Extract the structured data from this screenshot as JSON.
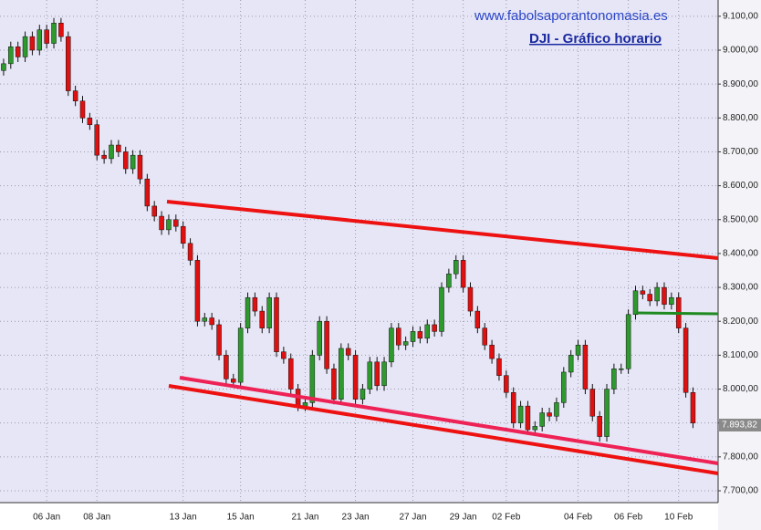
{
  "chart_data": {
    "type": "candlestick",
    "site": "www.fabolsaporantonomasia.es",
    "title": "DJI - Gráfico horario",
    "up_color": "#2e9a2e",
    "down_color": "#e01010",
    "grid": true,
    "ylim": [
      7665,
      9148
    ],
    "yticks": [
      {
        "value": 7700,
        "label": "7.700,00"
      },
      {
        "value": 7800,
        "label": "7.800,00"
      },
      {
        "value": 7900,
        "label": "7.900,00"
      },
      {
        "value": 8000,
        "label": "8.000,00"
      },
      {
        "value": 8100,
        "label": "8.100,00"
      },
      {
        "value": 8200,
        "label": "8.200,00"
      },
      {
        "value": 8300,
        "label": "8.300,00"
      },
      {
        "value": 8400,
        "label": "8.400,00"
      },
      {
        "value": 8500,
        "label": "8.500,00"
      },
      {
        "value": 8600,
        "label": "8.600,00"
      },
      {
        "value": 8700,
        "label": "8.700,00"
      },
      {
        "value": 8800,
        "label": "8.800,00"
      },
      {
        "value": 8900,
        "label": "8.900,00"
      },
      {
        "value": 9000,
        "label": "9.000,00"
      },
      {
        "value": 9100,
        "label": "9.100,00"
      }
    ],
    "last_price": {
      "value": 7893.82,
      "label": "7.893,82"
    },
    "categories": [
      null,
      null,
      null,
      null,
      null,
      null,
      "06 Jan",
      null,
      null,
      null,
      null,
      null,
      null,
      "08 Jan",
      null,
      null,
      null,
      null,
      null,
      null,
      null,
      null,
      null,
      null,
      null,
      "13 Jan",
      null,
      null,
      null,
      null,
      null,
      null,
      null,
      "15 Jan",
      null,
      null,
      null,
      null,
      null,
      null,
      null,
      null,
      "21 Jan",
      null,
      null,
      null,
      null,
      null,
      null,
      "23 Jan",
      null,
      null,
      null,
      null,
      null,
      null,
      null,
      "27 Jan",
      null,
      null,
      null,
      null,
      null,
      null,
      "29 Jan",
      null,
      null,
      null,
      null,
      null,
      "02 Feb",
      null,
      null,
      null,
      null,
      null,
      null,
      null,
      null,
      null,
      "04 Feb",
      null,
      null,
      null,
      null,
      null,
      null,
      "06 Feb",
      null,
      null,
      null,
      null,
      null,
      null,
      "10 Feb",
      null,
      null
    ],
    "open": [
      8940,
      8960,
      9010,
      8980,
      9040,
      9000,
      9060,
      9020,
      9080,
      9040,
      8880,
      8850,
      8800,
      8780,
      8690,
      8680,
      8720,
      8700,
      8650,
      8690,
      8620,
      8540,
      8510,
      8470,
      8500,
      8480,
      8430,
      8380,
      8200,
      8210,
      8190,
      8100,
      8030,
      8020,
      8180,
      8270,
      8230,
      8180,
      8270,
      8110,
      8090,
      8000,
      7950,
      7960,
      8100,
      8200,
      8060,
      7970,
      8120,
      8100,
      7970,
      8000,
      8080,
      8010,
      8080,
      8180,
      8130,
      8140,
      8170,
      8150,
      8190,
      8170,
      8300,
      8340,
      8380,
      8300,
      8230,
      8180,
      8130,
      8090,
      8040,
      7990,
      7900,
      7950,
      7880,
      7890,
      7930,
      7920,
      7960,
      8050,
      8100,
      8130,
      8000,
      7920,
      7860,
      8000,
      8060,
      8060,
      8220,
      8290,
      8280,
      8260,
      8300,
      8250,
      8270,
      8180,
      7990
    ],
    "high": [
      8975,
      9025,
      9025,
      9055,
      9055,
      9075,
      9075,
      9095,
      9095,
      9055,
      8895,
      8865,
      8815,
      8795,
      8705,
      8735,
      8735,
      8715,
      8705,
      8705,
      8635,
      8555,
      8525,
      8515,
      8515,
      8495,
      8445,
      8395,
      8225,
      8225,
      8205,
      8115,
      8045,
      8195,
      8285,
      8285,
      8245,
      8285,
      8285,
      8125,
      8105,
      8015,
      7975,
      8115,
      8215,
      8215,
      8075,
      8135,
      8135,
      8115,
      8015,
      8095,
      8095,
      8095,
      8195,
      8195,
      8155,
      8185,
      8185,
      8205,
      8205,
      8315,
      8355,
      8395,
      8395,
      8315,
      8245,
      8195,
      8145,
      8105,
      8055,
      8005,
      7965,
      7965,
      7905,
      7945,
      7945,
      7975,
      8065,
      8115,
      8145,
      8145,
      8015,
      7935,
      8015,
      8075,
      8075,
      8235,
      8305,
      8305,
      8295,
      8315,
      8315,
      8285,
      8285,
      8195,
      8005
    ],
    "low": [
      8925,
      8945,
      8965,
      8965,
      8985,
      8985,
      9005,
      9005,
      9025,
      8865,
      8835,
      8785,
      8765,
      8675,
      8665,
      8665,
      8685,
      8635,
      8635,
      8605,
      8525,
      8495,
      8455,
      8455,
      8465,
      8415,
      8365,
      8185,
      8185,
      8175,
      8085,
      8015,
      8005,
      8005,
      8165,
      8215,
      8165,
      8165,
      8095,
      8075,
      7985,
      7935,
      7935,
      7945,
      8085,
      8045,
      7955,
      7955,
      8085,
      7955,
      7955,
      7985,
      7995,
      7995,
      8065,
      8115,
      8115,
      8125,
      8135,
      8135,
      8155,
      8155,
      8285,
      8325,
      8285,
      8215,
      8165,
      8115,
      8075,
      8025,
      7975,
      7885,
      7885,
      7865,
      7865,
      7875,
      7905,
      7905,
      7945,
      8035,
      8085,
      7985,
      7905,
      7845,
      7845,
      7985,
      8045,
      8045,
      8205,
      8265,
      8245,
      8245,
      8235,
      8235,
      8165,
      7975,
      7885
    ],
    "close": [
      8960,
      9010,
      8980,
      9040,
      9000,
      9060,
      9020,
      9080,
      9040,
      8880,
      8850,
      8800,
      8780,
      8690,
      8680,
      8720,
      8700,
      8650,
      8690,
      8620,
      8540,
      8510,
      8470,
      8500,
      8480,
      8430,
      8380,
      8200,
      8210,
      8190,
      8100,
      8030,
      8020,
      8180,
      8270,
      8230,
      8180,
      8270,
      8110,
      8090,
      8000,
      7950,
      7960,
      8100,
      8200,
      8060,
      7970,
      8120,
      8100,
      7970,
      8000,
      8080,
      8010,
      8080,
      8180,
      8130,
      8140,
      8170,
      8150,
      8190,
      8170,
      8300,
      8340,
      8380,
      8300,
      8230,
      8180,
      8130,
      8090,
      8040,
      7990,
      7900,
      7950,
      7880,
      7890,
      7930,
      7920,
      7960,
      8050,
      8100,
      8130,
      8000,
      7920,
      7860,
      8000,
      8060,
      8060,
      8220,
      8290,
      8280,
      8260,
      8300,
      8250,
      8270,
      8180,
      7990,
      7900
    ]
  }
}
